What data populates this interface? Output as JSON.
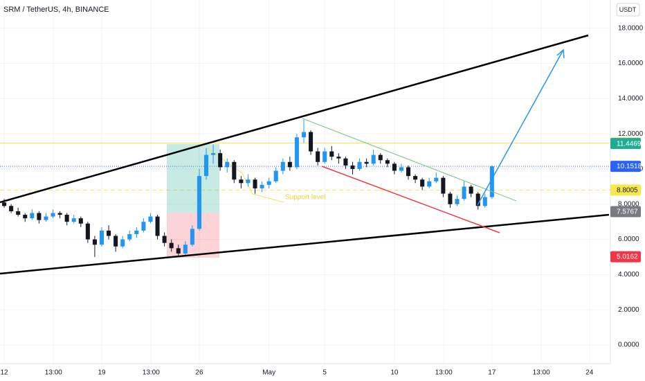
{
  "chart_data": {
    "type": "candlestick",
    "title": "SRM / TetherUS, 4h, BINANCE",
    "currency": "USDT",
    "annotation": "Support level",
    "up_color": "#2196f3",
    "down_color": "#131722",
    "xlim": [
      -0.3,
      43.4
    ],
    "ylim": [
      -1.06,
      19.6
    ],
    "xticks": [
      {
        "value": 0,
        "label": "12"
      },
      {
        "value": 3.54,
        "label": "13:00"
      },
      {
        "value": 7,
        "label": "19"
      },
      {
        "value": 10.54,
        "label": "13:00"
      },
      {
        "value": 14,
        "label": "26"
      },
      {
        "value": 19,
        "label": "May"
      },
      {
        "value": 23,
        "label": "5"
      },
      {
        "value": 28,
        "label": "10"
      },
      {
        "value": 31.54,
        "label": "13:00"
      },
      {
        "value": 35,
        "label": "17"
      },
      {
        "value": 38.54,
        "label": "13:00"
      },
      {
        "value": 42,
        "label": "24"
      }
    ],
    "yticks": [
      {
        "value": 0,
        "label": "0.0000"
      },
      {
        "value": 2,
        "label": "2.0000"
      },
      {
        "value": 4,
        "label": "4.0000"
      },
      {
        "value": 6,
        "label": "6.0000"
      },
      {
        "value": 8,
        "label": "8.0000"
      },
      {
        "value": 10,
        "label": "10.0000"
      },
      {
        "value": 12,
        "label": "12.0000"
      },
      {
        "value": 14,
        "label": "14.0000"
      },
      {
        "value": 16,
        "label": "16.0000"
      },
      {
        "value": 18,
        "label": "18.0000"
      }
    ],
    "grid": true,
    "x": [
      0,
      0.5,
      1,
      1.5,
      2,
      2.5,
      3,
      3.5,
      4,
      4.5,
      5,
      5.5,
      6,
      6.5,
      7,
      7.5,
      8,
      8.5,
      9,
      9.5,
      10,
      10.5,
      11,
      11.5,
      12,
      12.5,
      13,
      13.5,
      14,
      14.5,
      15,
      15.5,
      16,
      16.5,
      17,
      17.5,
      18,
      18.5,
      19,
      19.5,
      20,
      20.5,
      21,
      21.5,
      22,
      22.5,
      23,
      23.5,
      24,
      24.5,
      25,
      25.5,
      26,
      26.5,
      27,
      27.5,
      28,
      28.5,
      29,
      29.5,
      30,
      30.5,
      31,
      31.5,
      32,
      32.5,
      33,
      33.5,
      34,
      34.5,
      35
    ],
    "open": [
      8.1,
      7.9,
      7.6,
      7.4,
      7.2,
      7.5,
      7.1,
      7.3,
      7.5,
      7.4,
      7.0,
      7.2,
      6.9,
      6.0,
      5.7,
      6.5,
      6.2,
      5.6,
      6.0,
      6.3,
      6.5,
      7.0,
      7.3,
      6.2,
      5.8,
      5.5,
      5.2,
      5.7,
      6.6,
      9.6,
      10.8,
      10.9,
      10.1,
      10.4,
      9.4,
      9.2,
      9.4,
      8.9,
      9.1,
      9.3,
      9.9,
      10.4,
      10.1,
      11.8,
      12.1,
      11.0,
      10.4,
      11.0,
      10.7,
      10.6,
      10.2,
      10.0,
      10.4,
      10.3,
      10.8,
      10.5,
      10.3,
      9.9,
      10.1,
      9.6,
      9.4,
      9.0,
      9.3,
      9.5,
      8.6,
      8.0,
      8.3,
      9.0,
      8.6,
      7.9,
      8.4
    ],
    "high": [
      8.3,
      8.0,
      7.8,
      7.5,
      7.7,
      7.6,
      7.5,
      7.7,
      7.6,
      7.5,
      7.4,
      7.3,
      7.0,
      6.2,
      6.7,
      6.8,
      6.3,
      6.2,
      6.5,
      6.7,
      7.2,
      7.5,
      7.4,
      6.4,
      6.0,
      5.7,
      5.9,
      6.8,
      10.0,
      11.2,
      11.4,
      11.1,
      10.6,
      10.5,
      9.6,
      9.7,
      9.5,
      9.3,
      9.5,
      10.1,
      10.6,
      10.7,
      12.0,
      12.8,
      12.2,
      11.2,
      11.2,
      11.3,
      10.9,
      10.7,
      10.4,
      10.6,
      10.6,
      11.1,
      10.9,
      10.6,
      10.4,
      10.3,
      10.2,
      9.7,
      9.5,
      9.5,
      9.8,
      9.6,
      8.7,
      8.5,
      9.3,
      9.1,
      8.7,
      8.6,
      10.2
    ],
    "low": [
      7.8,
      7.5,
      7.3,
      7.0,
      7.1,
      6.9,
      7.0,
      7.2,
      7.2,
      6.8,
      6.9,
      6.7,
      5.8,
      5.0,
      5.6,
      6.0,
      5.3,
      5.5,
      5.9,
      6.1,
      6.4,
      6.9,
      6.0,
      5.6,
      5.3,
      5.0,
      5.1,
      5.6,
      6.5,
      9.4,
      10.3,
      9.9,
      9.8,
      9.2,
      8.9,
      9.0,
      8.6,
      8.7,
      8.9,
      9.2,
      9.7,
      9.9,
      10.0,
      11.5,
      10.8,
      10.2,
      10.3,
      10.5,
      10.3,
      10.0,
      9.7,
      9.9,
      10.1,
      10.2,
      10.3,
      10.1,
      9.7,
      9.8,
      9.4,
      9.2,
      8.8,
      8.9,
      9.2,
      8.4,
      7.8,
      7.9,
      8.2,
      8.4,
      7.7,
      7.8,
      8.3
    ],
    "close": [
      7.9,
      7.6,
      7.4,
      7.2,
      7.5,
      7.1,
      7.3,
      7.5,
      7.4,
      7.0,
      7.2,
      6.9,
      6.0,
      5.7,
      6.5,
      6.2,
      5.6,
      6.0,
      6.3,
      6.5,
      7.0,
      7.3,
      6.2,
      5.8,
      5.5,
      5.2,
      5.7,
      6.6,
      9.6,
      10.8,
      10.9,
      10.1,
      10.4,
      9.4,
      9.2,
      9.4,
      8.9,
      9.1,
      9.3,
      9.9,
      10.4,
      10.1,
      11.8,
      12.1,
      11.0,
      10.4,
      11.0,
      10.7,
      10.6,
      10.2,
      10.0,
      10.4,
      10.3,
      10.8,
      10.5,
      10.3,
      9.9,
      10.1,
      9.6,
      9.4,
      9.0,
      9.3,
      9.5,
      8.6,
      8.0,
      8.3,
      9.0,
      8.6,
      7.9,
      8.4,
      10.15
    ],
    "price_markers": [
      {
        "value": 11.4749,
        "color": "#f9e84a",
        "text_color": "#131722",
        "line": "solid"
      },
      {
        "value": 11.4469,
        "color": "#22ab94",
        "text_color": "#ffffff",
        "line": "none"
      },
      {
        "value": 10.1518,
        "color": "#2962ff",
        "text_color": "#ffffff",
        "line": "dotted"
      },
      {
        "value": 8.8005,
        "color": "#f9e84a",
        "text_color": "#131722",
        "line": "dashed"
      },
      {
        "value": 7.5767,
        "color": "#787b86",
        "text_color": "#ffffff",
        "line": "none"
      },
      {
        "value": 5.0162,
        "color": "#f23645",
        "text_color": "#ffffff",
        "line": "none"
      }
    ]
  }
}
